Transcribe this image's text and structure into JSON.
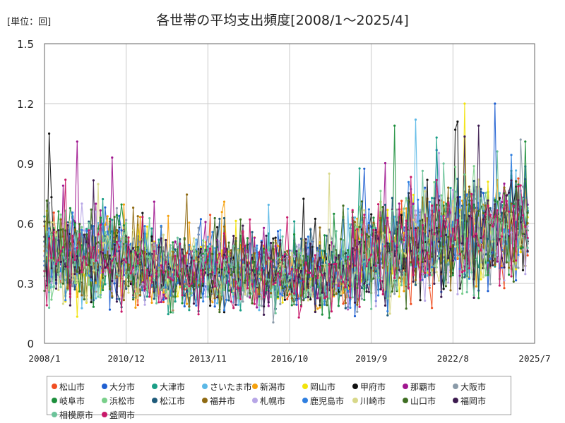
{
  "header": {
    "unit_label": "[単位：回]",
    "title": "各世帯の平均支出頻度[2008/1～2025/4]"
  },
  "chart_data": {
    "type": "line",
    "title": "各世帯の平均支出頻度[2008/1～2025/4]",
    "unit": "[単位：回]",
    "x_ticks": [
      "2008/1",
      "2010/12",
      "2013/11",
      "2016/10",
      "2019/9",
      "2022/8",
      "2025/7"
    ],
    "x_range": [
      "2008/1",
      "2025/7"
    ],
    "y_ticks": [
      "0",
      "0.3",
      "0.6",
      "0.9",
      "1.2",
      "1.5"
    ],
    "ylim": [
      0,
      1.5
    ],
    "grid": true,
    "legend_position": "bottom",
    "series": [
      {
        "name": "松山市",
        "color": "#f04e22",
        "seed": 11,
        "highs": []
      },
      {
        "name": "大分市",
        "color": "#1f5fd1",
        "seed": 12,
        "highs": [
          [
            "2024/2",
            1.23
          ]
        ]
      },
      {
        "name": "大津市",
        "color": "#1a9e86",
        "seed": 13,
        "highs": []
      },
      {
        "name": "さいたま市",
        "color": "#5bb8e6",
        "seed": 14,
        "highs": [
          [
            "2021/4",
            1.12
          ]
        ]
      },
      {
        "name": "新潟市",
        "color": "#f5a10d",
        "seed": 15,
        "highs": []
      },
      {
        "name": "岡山市",
        "color": "#f2e30c",
        "seed": 16,
        "highs": [
          [
            "2023/1",
            1.22
          ]
        ]
      },
      {
        "name": "甲府市",
        "color": "#111111",
        "seed": 17,
        "highs": [
          [
            "2022/10",
            1.11
          ],
          [
            "2008/3",
            1.05
          ]
        ]
      },
      {
        "name": "那覇市",
        "color": "#a0168f",
        "seed": 18,
        "highs": [
          [
            "2009/3",
            1.01
          ],
          [
            "2010/6",
            0.93
          ]
        ]
      },
      {
        "name": "大阪市",
        "color": "#8a9aa8",
        "seed": 19,
        "highs": [
          [
            "2025/1",
            1.02
          ]
        ]
      },
      {
        "name": "岐阜市",
        "color": "#1d8f3c",
        "seed": 20,
        "highs": [
          [
            "2020/7",
            1.09
          ],
          [
            "2025/3",
            1.01
          ]
        ]
      },
      {
        "name": "浜松市",
        "color": "#79cf8a",
        "seed": 21,
        "highs": []
      },
      {
        "name": "松江市",
        "color": "#1f5b7a",
        "seed": 22,
        "highs": []
      },
      {
        "name": "福井市",
        "color": "#8f6a12",
        "seed": 23,
        "highs": []
      },
      {
        "name": "札幌市",
        "color": "#b7a6e6",
        "seed": 24,
        "highs": []
      },
      {
        "name": "鹿児島市",
        "color": "#2f7fe0",
        "seed": 25,
        "highs": []
      },
      {
        "name": "川崎市",
        "color": "#d8d88a",
        "seed": 26,
        "highs": [
          [
            "2018/3",
            0.85
          ]
        ]
      },
      {
        "name": "山口市",
        "color": "#3f6e23",
        "seed": 27,
        "highs": []
      },
      {
        "name": "福岡市",
        "color": "#3c1b4f",
        "seed": 28,
        "highs": [
          [
            "2023/7",
            1.09
          ]
        ]
      },
      {
        "name": "相模原市",
        "color": "#6cc39a",
        "seed": 29,
        "highs": []
      },
      {
        "name": "盛岡市",
        "color": "#c8196a",
        "seed": 30,
        "highs": []
      }
    ]
  }
}
